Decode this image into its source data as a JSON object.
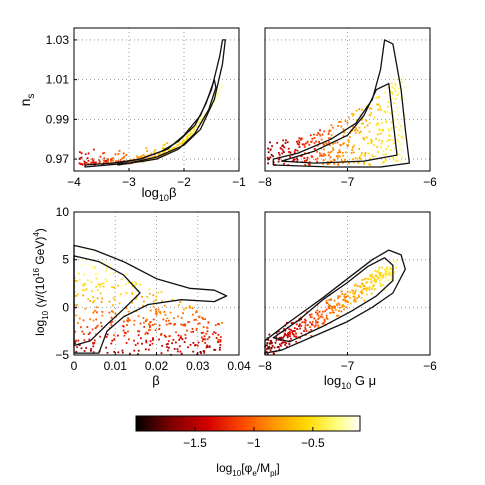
{
  "chart_data": [
    {
      "type": "scatter",
      "panel": "top-left",
      "xlabel_main": "log",
      "xlabel_sub": "10",
      "xlabel_tail": "β",
      "ylabel_main": "n",
      "ylabel_sub": "s",
      "xlim": [
        -4,
        -1
      ],
      "ylim": [
        0.964,
        1.036
      ],
      "xticks": [
        -4,
        -3,
        -2,
        -1
      ],
      "xtick_labels": [
        "−4",
        "−3",
        "−2",
        "−1"
      ],
      "yticks": [
        0.97,
        0.99,
        1.01,
        1.03
      ],
      "ytick_labels": [
        "0.97",
        "0.99",
        "1.01",
        "1.03"
      ],
      "grid": true,
      "contours": [
        {
          "name": "",
          "points": [
            [
              -3.8,
              0.967
            ],
            [
              -3.3,
              0.968
            ],
            [
              -2.8,
              0.97
            ],
            [
              -2.3,
              0.975
            ],
            [
              -2.0,
              0.982
            ],
            [
              -1.7,
              0.992
            ],
            [
              -1.5,
              1.005
            ],
            [
              -1.35,
              1.022
            ],
            [
              -1.3,
              1.03
            ],
            [
              -1.25,
              1.03
            ],
            [
              -1.3,
              1.018
            ],
            [
              -1.45,
              1.0
            ],
            [
              -1.7,
              0.985
            ],
            [
              -2.0,
              0.977
            ],
            [
              -2.5,
              0.971
            ],
            [
              -3.0,
              0.968
            ],
            [
              -3.8,
              0.966
            ]
          ]
        },
        {
          "name": "",
          "points": [
            [
              -3.2,
              0.968
            ],
            [
              -2.8,
              0.97
            ],
            [
              -2.4,
              0.974
            ],
            [
              -2.1,
              0.979
            ],
            [
              -1.8,
              0.987
            ],
            [
              -1.6,
              0.998
            ],
            [
              -1.45,
              1.01
            ],
            [
              -1.42,
              1.006
            ],
            [
              -1.55,
              0.995
            ],
            [
              -1.8,
              0.983
            ],
            [
              -2.1,
              0.975
            ],
            [
              -2.5,
              0.97
            ],
            [
              -3.2,
              0.967
            ]
          ]
        }
      ],
      "point_groups": [
        {
          "x_range": [
            -3.9,
            -1.3
          ],
          "curve": "ridge",
          "spread": 0.006,
          "count": 320
        }
      ]
    },
    {
      "type": "scatter",
      "panel": "top-right",
      "xlim": [
        -8,
        -6
      ],
      "ylim": [
        0.964,
        1.036
      ],
      "xticks": [
        -8,
        -7,
        -6
      ],
      "xtick_labels": [
        "−8",
        "−7",
        "−6"
      ],
      "yticks": [
        0.97,
        0.99,
        1.01,
        1.03
      ],
      "grid": true,
      "contours": [
        {
          "name": "",
          "points": [
            [
              -7.9,
              0.97
            ],
            [
              -7.6,
              0.973
            ],
            [
              -7.2,
              0.98
            ],
            [
              -6.9,
              0.988
            ],
            [
              -6.7,
              1.0
            ],
            [
              -6.6,
              1.015
            ],
            [
              -6.55,
              1.03
            ],
            [
              -6.45,
              1.028
            ],
            [
              -6.35,
              1.005
            ],
            [
              -6.3,
              0.985
            ],
            [
              -6.25,
              0.968
            ],
            [
              -6.6,
              0.966
            ],
            [
              -7.2,
              0.966
            ],
            [
              -7.9,
              0.967
            ]
          ]
        },
        {
          "name": "",
          "points": [
            [
              -7.8,
              0.969
            ],
            [
              -7.4,
              0.974
            ],
            [
              -7.0,
              0.982
            ],
            [
              -6.8,
              0.992
            ],
            [
              -6.65,
              1.005
            ],
            [
              -6.5,
              1.008
            ],
            [
              -6.45,
              0.99
            ],
            [
              -6.4,
              0.972
            ],
            [
              -6.8,
              0.969
            ],
            [
              -7.4,
              0.968
            ]
          ]
        }
      ],
      "point_groups": [
        {
          "x_range": [
            -8.0,
            -6.3
          ],
          "y_range": [
            0.966,
            1.028
          ],
          "count": 420
        }
      ]
    },
    {
      "type": "scatter",
      "panel": "bottom-left",
      "xlabel": "β",
      "ylabel_main": "log",
      "ylabel_sub": "10",
      "ylabel_tail": " (γ/(10",
      "ylabel_sup": "16",
      "ylabel_tail2": " GeV)",
      "ylabel_sup2": "4",
      "ylabel_end": ")",
      "xlim": [
        0,
        0.04
      ],
      "ylim": [
        -5,
        10
      ],
      "xticks": [
        0,
        0.01,
        0.02,
        0.03,
        0.04
      ],
      "xtick_labels": [
        "0",
        "0.01",
        "0.02",
        "0.03",
        "0.04"
      ],
      "yticks": [
        -5,
        0,
        5,
        10
      ],
      "ytick_labels": [
        "−5",
        "0",
        "5",
        "10"
      ],
      "grid": true,
      "contours": [
        {
          "name": "",
          "points": [
            [
              0.0,
              6.5
            ],
            [
              0.005,
              6.0
            ],
            [
              0.012,
              4.8
            ],
            [
              0.02,
              3.0
            ],
            [
              0.028,
              2.0
            ],
            [
              0.034,
              1.8
            ],
            [
              0.037,
              1.2
            ],
            [
              0.034,
              0.6
            ],
            [
              0.026,
              0.8
            ],
            [
              0.018,
              0.3
            ],
            [
              0.012,
              -1.0
            ],
            [
              0.008,
              -2.5
            ],
            [
              0.006,
              -4.8
            ],
            [
              0.0,
              -4.8
            ]
          ]
        },
        {
          "name": "",
          "points": [
            [
              0.0,
              5.4
            ],
            [
              0.006,
              4.8
            ],
            [
              0.012,
              3.4
            ],
            [
              0.016,
              1.5
            ],
            [
              0.012,
              -0.2
            ],
            [
              0.008,
              -1.8
            ],
            [
              0.004,
              -3.5
            ],
            [
              0.0,
              -4.0
            ]
          ]
        }
      ],
      "point_groups": [
        {
          "x_range": [
            0.0,
            0.036
          ],
          "y_range": [
            -5,
            6.5
          ],
          "count": 420
        }
      ]
    },
    {
      "type": "scatter",
      "panel": "bottom-right",
      "xlabel_main": "log",
      "xlabel_sub": "10",
      "xlabel_tail": " G μ",
      "xlim": [
        -8,
        -6
      ],
      "ylim": [
        -5,
        10
      ],
      "xticks": [
        -8,
        -7,
        -6
      ],
      "xtick_labels": [
        "−8",
        "−7",
        "−6"
      ],
      "yticks": [
        -5,
        0,
        5,
        10
      ],
      "grid": true,
      "contours": [
        {
          "name": "",
          "points": [
            [
              -8.0,
              -3.5
            ],
            [
              -7.7,
              -1.5
            ],
            [
              -7.3,
              1.0
            ],
            [
              -7.0,
              3.0
            ],
            [
              -6.7,
              5.0
            ],
            [
              -6.5,
              6.0
            ],
            [
              -6.35,
              5.5
            ],
            [
              -6.3,
              4.0
            ],
            [
              -6.45,
              1.5
            ],
            [
              -6.7,
              0.0
            ],
            [
              -7.0,
              -1.5
            ],
            [
              -7.4,
              -3.0
            ],
            [
              -7.8,
              -4.5
            ],
            [
              -8.0,
              -4.8
            ]
          ]
        },
        {
          "name": "",
          "points": [
            [
              -7.9,
              -3.2
            ],
            [
              -7.6,
              -1.4
            ],
            [
              -7.3,
              0.8
            ],
            [
              -7.0,
              2.6
            ],
            [
              -6.75,
              4.3
            ],
            [
              -6.55,
              5.2
            ],
            [
              -6.45,
              4.4
            ],
            [
              -6.45,
              2.8
            ],
            [
              -6.65,
              1.2
            ],
            [
              -6.95,
              -0.4
            ],
            [
              -7.3,
              -2.0
            ],
            [
              -7.7,
              -3.6
            ]
          ]
        }
      ],
      "point_groups": [
        {
          "x_range": [
            -8.0,
            -6.4
          ],
          "curve": "diag",
          "count": 380
        }
      ]
    }
  ],
  "colorbar": {
    "label_main": "log",
    "label_sub": "10",
    "label_tail": "[φ",
    "label_sub2": "e",
    "label_tail2": "/M",
    "label_sub3": "pl",
    "label_end": "]",
    "range": [
      -2.0,
      -0.1
    ],
    "ticks": [
      -1.5,
      -1,
      -0.5
    ],
    "tick_labels": [
      "−1.5",
      "−1",
      "−0.5"
    ],
    "colormap": [
      "#000000",
      "#7a0000",
      "#d40000",
      "#ff4a00",
      "#ff9a00",
      "#ffd800",
      "#ffff80",
      "#ffffff"
    ]
  },
  "colors": {
    "contour": "#111111",
    "grid": "#888888"
  }
}
